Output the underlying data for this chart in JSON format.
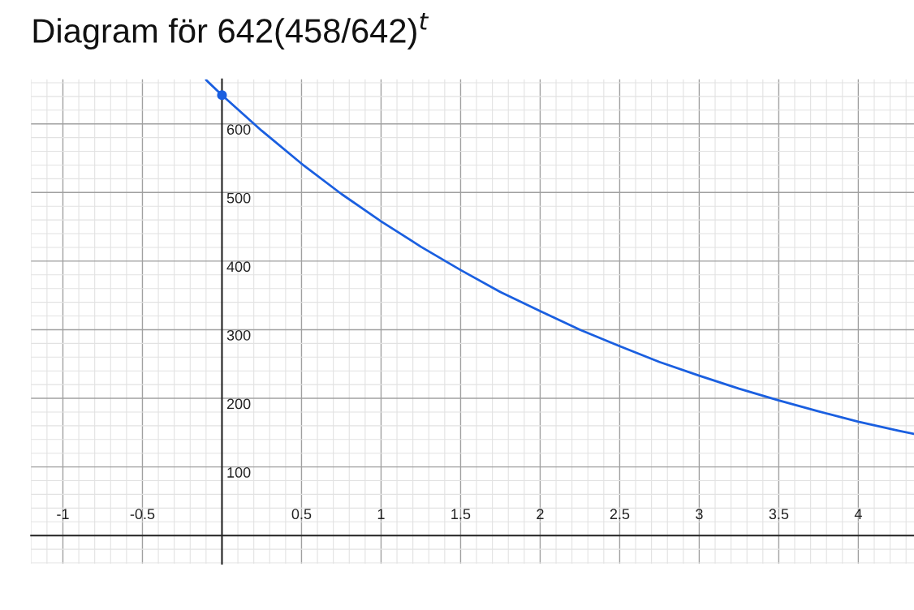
{
  "chart_data": {
    "type": "line",
    "title": "Diagram för 642(458/642)$^{t}$",
    "xlim": [
      -1.2,
      4.35
    ],
    "ylim": [
      -41,
      665
    ],
    "xticks": [
      -1,
      -0.5,
      0.5,
      1,
      1.5,
      2,
      2.5,
      3,
      3.5,
      4
    ],
    "yticks": [
      100,
      200,
      300,
      400,
      500,
      600
    ],
    "grid": true,
    "legend": false,
    "series": [
      {
        "color": "#1a5fe0",
        "marker": "none",
        "x": [
          -0.1,
          0,
          0.25,
          0.5,
          0.75,
          1,
          1.25,
          1.5,
          1.75,
          2,
          2.25,
          2.5,
          2.75,
          3,
          3.25,
          3.5,
          3.75,
          4,
          4.25,
          4.35
        ],
        "values": [
          664,
          642,
          590,
          542,
          498,
          458,
          421,
          387,
          355,
          327,
          300,
          276,
          253,
          233,
          214,
          197,
          181,
          166,
          153,
          148
        ]
      },
      {
        "type": "scatter",
        "color": "#1a5fe0",
        "marker": "circle",
        "x": [
          0
        ],
        "values": [
          642
        ]
      }
    ]
  }
}
